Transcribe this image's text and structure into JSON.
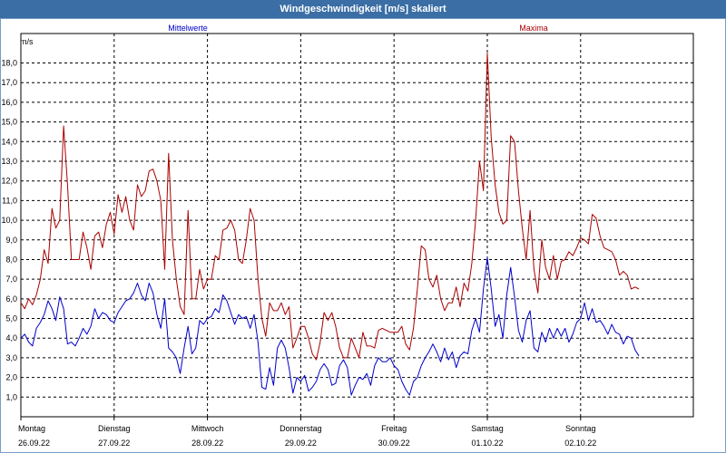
{
  "chart_data": {
    "type": "line",
    "title": "Windgeschwindigkeit [m/s] skaliert",
    "ylabel": "m/s",
    "ylim": [
      0,
      19.5
    ],
    "yticks": [
      "1,0",
      "2,0",
      "3,0",
      "4,0",
      "5,0",
      "6,0",
      "7,0",
      "8,0",
      "9,0",
      "10,0",
      "11,0",
      "12,0",
      "13,0",
      "14,0",
      "15,0",
      "16,0",
      "17,0",
      "18,0"
    ],
    "xrange_hours": [
      0,
      173
    ],
    "day_labels": [
      {
        "day": "Montag",
        "date": "26.09.22",
        "hour": 0
      },
      {
        "day": "Dienstag",
        "date": "27.09.22",
        "hour": 24
      },
      {
        "day": "Mittwoch",
        "date": "28.09.22",
        "hour": 48
      },
      {
        "day": "Donnerstag",
        "date": "29.09.22",
        "hour": 72
      },
      {
        "day": "Freitag",
        "date": "30.09.22",
        "hour": 96
      },
      {
        "day": "Samstag",
        "date": "01.10.22",
        "hour": 120
      },
      {
        "day": "Sonntag",
        "date": "02.10.22",
        "hour": 144
      }
    ],
    "series": [
      {
        "name": "Mittelwerte",
        "color": "#0000cc",
        "points": [
          [
            0,
            4.0
          ],
          [
            1,
            4.2
          ],
          [
            2,
            3.8
          ],
          [
            3,
            3.6
          ],
          [
            4,
            4.5
          ],
          [
            5,
            4.8
          ],
          [
            6,
            5.2
          ],
          [
            7,
            5.9
          ],
          [
            8,
            5.5
          ],
          [
            9,
            4.9
          ],
          [
            10,
            6.1
          ],
          [
            11,
            5.5
          ],
          [
            12,
            3.7
          ],
          [
            13,
            3.8
          ],
          [
            14,
            3.6
          ],
          [
            15,
            4.0
          ],
          [
            16,
            4.5
          ],
          [
            17,
            4.2
          ],
          [
            18,
            4.6
          ],
          [
            19,
            5.5
          ],
          [
            20,
            5.0
          ],
          [
            21,
            5.3
          ],
          [
            22,
            5.2
          ],
          [
            23,
            4.9
          ],
          [
            24,
            4.8
          ],
          [
            25,
            5.3
          ],
          [
            26,
            5.6
          ],
          [
            27,
            5.9
          ],
          [
            28,
            6.0
          ],
          [
            29,
            6.3
          ],
          [
            30,
            6.8
          ],
          [
            31,
            6.2
          ],
          [
            32,
            5.9
          ],
          [
            33,
            6.8
          ],
          [
            34,
            6.3
          ],
          [
            35,
            5.2
          ],
          [
            36,
            4.5
          ],
          [
            37,
            6.0
          ],
          [
            38,
            3.5
          ],
          [
            39,
            3.3
          ],
          [
            40,
            3.0
          ],
          [
            41,
            2.2
          ],
          [
            42,
            3.5
          ],
          [
            43,
            4.6
          ],
          [
            44,
            3.2
          ],
          [
            45,
            3.5
          ],
          [
            46,
            4.9
          ],
          [
            47,
            4.7
          ],
          [
            48,
            5.0
          ],
          [
            49,
            5.1
          ],
          [
            50,
            5.5
          ],
          [
            51,
            5.3
          ],
          [
            52,
            6.2
          ],
          [
            53,
            5.9
          ],
          [
            54,
            5.3
          ],
          [
            55,
            4.7
          ],
          [
            56,
            5.2
          ],
          [
            57,
            5.0
          ],
          [
            58,
            5.1
          ],
          [
            59,
            4.5
          ],
          [
            60,
            5.2
          ],
          [
            61,
            3.8
          ],
          [
            62,
            1.5
          ],
          [
            63,
            1.4
          ],
          [
            64,
            2.5
          ],
          [
            65,
            1.6
          ],
          [
            66,
            3.5
          ],
          [
            67,
            3.9
          ],
          [
            68,
            3.5
          ],
          [
            69,
            2.5
          ],
          [
            70,
            1.2
          ],
          [
            71,
            2.0
          ],
          [
            72,
            1.8
          ],
          [
            73,
            2.1
          ],
          [
            74,
            1.3
          ],
          [
            75,
            1.5
          ],
          [
            76,
            1.8
          ],
          [
            77,
            2.4
          ],
          [
            78,
            2.7
          ],
          [
            79,
            2.4
          ],
          [
            80,
            1.6
          ],
          [
            81,
            1.7
          ],
          [
            82,
            2.6
          ],
          [
            83,
            2.9
          ],
          [
            84,
            2.5
          ],
          [
            85,
            1.1
          ],
          [
            86,
            1.6
          ],
          [
            87,
            2.0
          ],
          [
            88,
            1.9
          ],
          [
            89,
            2.2
          ],
          [
            90,
            1.6
          ],
          [
            91,
            2.6
          ],
          [
            92,
            3.0
          ],
          [
            93,
            2.8
          ],
          [
            94,
            2.8
          ],
          [
            95,
            3.0
          ],
          [
            96,
            2.6
          ],
          [
            97,
            2.4
          ],
          [
            98,
            1.8
          ],
          [
            99,
            1.4
          ],
          [
            100,
            1.1
          ],
          [
            101,
            1.8
          ],
          [
            102,
            2.0
          ],
          [
            103,
            2.6
          ],
          [
            104,
            3.0
          ],
          [
            105,
            3.3
          ],
          [
            106,
            3.7
          ],
          [
            107,
            3.3
          ],
          [
            108,
            2.8
          ],
          [
            109,
            3.5
          ],
          [
            110,
            2.9
          ],
          [
            111,
            3.3
          ],
          [
            112,
            2.5
          ],
          [
            113,
            3.1
          ],
          [
            114,
            3.3
          ],
          [
            115,
            3.2
          ],
          [
            116,
            4.4
          ],
          [
            117,
            5.0
          ],
          [
            118,
            4.3
          ],
          [
            119,
            6.5
          ],
          [
            120,
            8.1
          ],
          [
            121,
            6.5
          ],
          [
            122,
            4.6
          ],
          [
            123,
            5.2
          ],
          [
            124,
            4.0
          ],
          [
            125,
            6.2
          ],
          [
            126,
            7.6
          ],
          [
            127,
            6.1
          ],
          [
            128,
            4.4
          ],
          [
            129,
            3.8
          ],
          [
            130,
            4.9
          ],
          [
            131,
            5.4
          ],
          [
            132,
            3.5
          ],
          [
            133,
            3.3
          ],
          [
            134,
            4.3
          ],
          [
            135,
            3.8
          ],
          [
            136,
            4.5
          ],
          [
            137,
            4.0
          ],
          [
            138,
            4.5
          ],
          [
            139,
            4.1
          ],
          [
            140,
            4.5
          ],
          [
            141,
            3.8
          ],
          [
            142,
            4.2
          ],
          [
            143,
            4.8
          ],
          [
            144,
            5.0
          ],
          [
            145,
            5.8
          ],
          [
            146,
            4.9
          ],
          [
            147,
            5.5
          ],
          [
            148,
            4.8
          ],
          [
            149,
            4.9
          ],
          [
            150,
            4.6
          ],
          [
            151,
            4.2
          ],
          [
            152,
            4.7
          ],
          [
            153,
            4.3
          ],
          [
            154,
            4.2
          ],
          [
            155,
            3.7
          ],
          [
            156,
            4.1
          ],
          [
            157,
            4.0
          ],
          [
            158,
            3.4
          ],
          [
            159,
            3.1
          ]
        ]
      },
      {
        "name": "Maxima",
        "color": "#aa0000",
        "points": [
          [
            0,
            5.8
          ],
          [
            1,
            5.5
          ],
          [
            2,
            6.0
          ],
          [
            3,
            5.7
          ],
          [
            4,
            6.2
          ],
          [
            5,
            7.0
          ],
          [
            6,
            8.5
          ],
          [
            7,
            7.8
          ],
          [
            8,
            10.6
          ],
          [
            9,
            9.6
          ],
          [
            10,
            10.0
          ],
          [
            11,
            14.8
          ],
          [
            12,
            11.8
          ],
          [
            13,
            8.0
          ],
          [
            14,
            8.0
          ],
          [
            15,
            8.0
          ],
          [
            16,
            9.4
          ],
          [
            17,
            8.6
          ],
          [
            18,
            7.5
          ],
          [
            19,
            9.2
          ],
          [
            20,
            9.4
          ],
          [
            21,
            8.6
          ],
          [
            22,
            9.8
          ],
          [
            23,
            10.4
          ],
          [
            24,
            9.3
          ],
          [
            25,
            11.3
          ],
          [
            26,
            10.4
          ],
          [
            27,
            11.2
          ],
          [
            28,
            10.0
          ],
          [
            29,
            9.5
          ],
          [
            30,
            11.8
          ],
          [
            31,
            11.2
          ],
          [
            32,
            11.5
          ],
          [
            33,
            12.5
          ],
          [
            34,
            12.6
          ],
          [
            35,
            12.0
          ],
          [
            36,
            11.0
          ],
          [
            37,
            7.5
          ],
          [
            38,
            13.4
          ],
          [
            39,
            9.0
          ],
          [
            40,
            7.0
          ],
          [
            41,
            5.6
          ],
          [
            42,
            5.2
          ],
          [
            43,
            10.5
          ],
          [
            44,
            6.0
          ],
          [
            45,
            6.0
          ],
          [
            46,
            7.5
          ],
          [
            47,
            6.5
          ],
          [
            48,
            7.0
          ],
          [
            49,
            7.0
          ],
          [
            50,
            8.2
          ],
          [
            51,
            8.0
          ],
          [
            52,
            9.5
          ],
          [
            53,
            9.6
          ],
          [
            54,
            10.0
          ],
          [
            55,
            9.5
          ],
          [
            56,
            8.0
          ],
          [
            57,
            7.8
          ],
          [
            58,
            9.0
          ],
          [
            59,
            10.6
          ],
          [
            60,
            10.0
          ],
          [
            61,
            7.0
          ],
          [
            62,
            5.0
          ],
          [
            63,
            4.1
          ],
          [
            64,
            5.8
          ],
          [
            65,
            5.4
          ],
          [
            66,
            5.4
          ],
          [
            67,
            5.8
          ],
          [
            68,
            5.2
          ],
          [
            69,
            5.6
          ],
          [
            70,
            3.5
          ],
          [
            71,
            4.0
          ],
          [
            72,
            4.6
          ],
          [
            73,
            4.6
          ],
          [
            74,
            4.0
          ],
          [
            75,
            3.2
          ],
          [
            76,
            2.9
          ],
          [
            77,
            3.8
          ],
          [
            78,
            5.3
          ],
          [
            79,
            4.9
          ],
          [
            80,
            5.3
          ],
          [
            81,
            4.6
          ],
          [
            82,
            3.5
          ],
          [
            83,
            3.0
          ],
          [
            84,
            3.0
          ],
          [
            85,
            4.0
          ],
          [
            86,
            3.5
          ],
          [
            87,
            3.0
          ],
          [
            88,
            4.3
          ],
          [
            89,
            3.6
          ],
          [
            90,
            3.6
          ],
          [
            91,
            3.5
          ],
          [
            92,
            4.4
          ],
          [
            93,
            4.5
          ],
          [
            94,
            4.4
          ],
          [
            95,
            4.3
          ],
          [
            96,
            4.3
          ],
          [
            97,
            4.3
          ],
          [
            98,
            4.6
          ],
          [
            99,
            3.7
          ],
          [
            100,
            3.4
          ],
          [
            101,
            4.5
          ],
          [
            102,
            6.5
          ],
          [
            103,
            8.7
          ],
          [
            104,
            8.5
          ],
          [
            105,
            7.0
          ],
          [
            106,
            6.6
          ],
          [
            107,
            7.2
          ],
          [
            108,
            6.0
          ],
          [
            109,
            5.4
          ],
          [
            110,
            5.8
          ],
          [
            111,
            5.8
          ],
          [
            112,
            6.6
          ],
          [
            113,
            5.6
          ],
          [
            114,
            6.8
          ],
          [
            115,
            6.4
          ],
          [
            116,
            7.8
          ],
          [
            117,
            10.0
          ],
          [
            118,
            13.0
          ],
          [
            119,
            11.5
          ],
          [
            120,
            18.5
          ],
          [
            121,
            14.2
          ],
          [
            122,
            11.8
          ],
          [
            123,
            10.4
          ],
          [
            124,
            9.8
          ],
          [
            125,
            10.0
          ],
          [
            126,
            14.3
          ],
          [
            127,
            14.0
          ],
          [
            128,
            11.5
          ],
          [
            129,
            9.6
          ],
          [
            130,
            8.0
          ],
          [
            131,
            10.5
          ],
          [
            132,
            7.5
          ],
          [
            133,
            6.3
          ],
          [
            134,
            9.0
          ],
          [
            135,
            7.6
          ],
          [
            136,
            7.0
          ],
          [
            137,
            8.2
          ],
          [
            138,
            7.0
          ],
          [
            139,
            7.9
          ],
          [
            140,
            8.0
          ],
          [
            141,
            8.4
          ],
          [
            142,
            8.2
          ],
          [
            143,
            8.6
          ],
          [
            144,
            9.1
          ],
          [
            145,
            9.0
          ],
          [
            146,
            8.8
          ],
          [
            147,
            10.3
          ],
          [
            148,
            10.1
          ],
          [
            149,
            9.2
          ],
          [
            150,
            8.6
          ],
          [
            151,
            8.5
          ],
          [
            152,
            8.4
          ],
          [
            153,
            8.0
          ],
          [
            154,
            7.2
          ],
          [
            155,
            7.4
          ],
          [
            156,
            7.2
          ],
          [
            157,
            6.5
          ],
          [
            158,
            6.6
          ],
          [
            159,
            6.5
          ]
        ]
      }
    ]
  }
}
